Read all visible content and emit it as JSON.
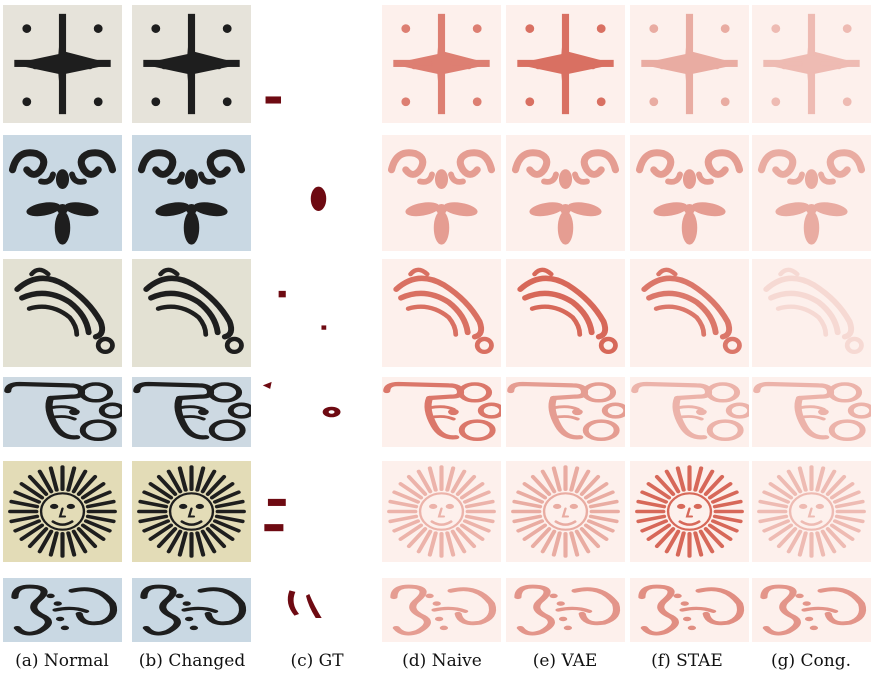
{
  "columns": [
    {
      "key": "normal",
      "label": "(a) Normal"
    },
    {
      "key": "changed",
      "label": "(b) Changed"
    },
    {
      "key": "gt",
      "label": "(c) GT"
    },
    {
      "key": "naive",
      "label": "(d) Naive"
    },
    {
      "key": "vae",
      "label": "(e) VAE"
    },
    {
      "key": "stae",
      "label": "(f) STAE"
    },
    {
      "key": "cong",
      "label": "(g) Cong."
    }
  ],
  "rows": [
    {
      "motif": "cross-with-dots",
      "background": "#e6e3da"
    },
    {
      "motif": "floral-scroll",
      "background": "#c9d8e3"
    },
    {
      "motif": "leaf-flourish",
      "background": "#e3e1d3"
    },
    {
      "motif": "pointing-hand",
      "background": "#cdd9e2"
    },
    {
      "motif": "sun-face",
      "background": "#e3dcb7"
    },
    {
      "motif": "scroll-ornament",
      "background": "#c9d8e3"
    }
  ],
  "colors": {
    "heatmap_background": "#fdf0ec",
    "heatmap_stroke": "#d35a4a",
    "heatmap_strong": "#c41d10",
    "gt_mark": "#6e0a12",
    "ink": "#1e1e1e"
  }
}
